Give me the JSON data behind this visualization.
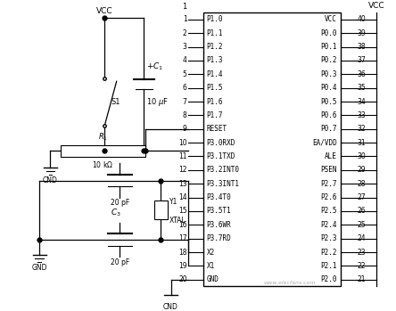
{
  "bg_color": "#ffffff",
  "line_color": "#000000",
  "text_color": "#000000",
  "left_pins": [
    [
      1,
      "P1.0"
    ],
    [
      2,
      "P1.1"
    ],
    [
      3,
      "P1.2"
    ],
    [
      4,
      "P1.3"
    ],
    [
      5,
      "P1.4"
    ],
    [
      6,
      "P1.5"
    ],
    [
      7,
      "P1.6"
    ],
    [
      8,
      "P1.7"
    ],
    [
      9,
      "RESET"
    ],
    [
      10,
      "P3.0RXD"
    ],
    [
      11,
      "P3.1TXD"
    ],
    [
      12,
      "P3.2INT0"
    ],
    [
      13,
      "P3.3INT1"
    ],
    [
      14,
      "P3.4T0"
    ],
    [
      15,
      "P3.5T1"
    ],
    [
      16,
      "P3.6WR"
    ],
    [
      17,
      "P3.7RD"
    ],
    [
      18,
      "X2"
    ],
    [
      19,
      "X1"
    ],
    [
      20,
      "GND"
    ]
  ],
  "right_pins": [
    [
      40,
      "VCC"
    ],
    [
      39,
      "P0.0"
    ],
    [
      38,
      "P0.1"
    ],
    [
      37,
      "P0.2"
    ],
    [
      36,
      "P0.3"
    ],
    [
      35,
      "P0.4"
    ],
    [
      34,
      "P0.5"
    ],
    [
      33,
      "P0.6"
    ],
    [
      32,
      "P0.7"
    ],
    [
      31,
      "EA/VDD"
    ],
    [
      30,
      "ALE"
    ],
    [
      29,
      "PSEN"
    ],
    [
      28,
      "P2.7"
    ],
    [
      27,
      "P2.6"
    ],
    [
      26,
      "P2.5"
    ],
    [
      25,
      "P2.4"
    ],
    [
      24,
      "P2.3"
    ],
    [
      23,
      "P2.2"
    ],
    [
      22,
      "P2.1"
    ],
    [
      21,
      "P2.0"
    ]
  ],
  "watermark": "www.elecfans.com"
}
